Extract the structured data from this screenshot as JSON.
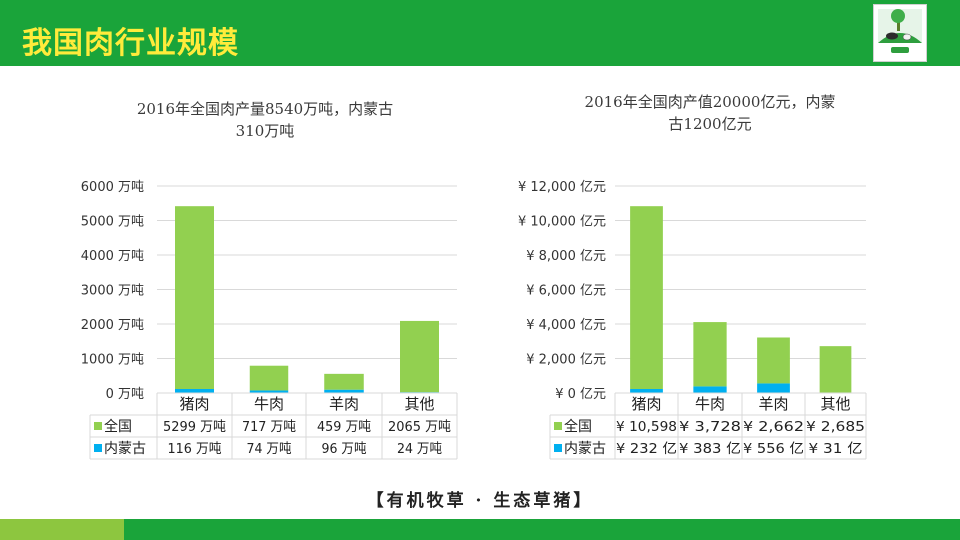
{
  "header": {
    "title": "我国肉行业规模"
  },
  "slogan": "【有机牧草 · 生态草猪】",
  "colors": {
    "brand_green": "#1aa43a",
    "national": "#92d050",
    "inner_mongolia": "#00b0f0",
    "title_yellow": "#ffeb3b"
  },
  "logo": {
    "icon": "cow-on-green-hill-logo"
  },
  "chart_data": [
    {
      "type": "bar",
      "stacked": true,
      "title": "2016年全国肉产量8540万吨，内蒙古310万吨",
      "title_lines": [
        "2016年全国肉产量8540万吨，内蒙古",
        "310万吨"
      ],
      "categories": [
        "猪肉",
        "牛肉",
        "羊肉",
        "其他"
      ],
      "series": [
        {
          "name": "全国",
          "values": [
            5299,
            717,
            459,
            2065
          ],
          "labels": [
            "5299 万吨",
            "717 万吨",
            "459 万吨",
            "2065 万吨"
          ]
        },
        {
          "name": "内蒙古",
          "values": [
            116,
            74,
            96,
            24
          ],
          "labels": [
            "116 万吨",
            "74 万吨",
            "96 万吨",
            "24 万吨"
          ]
        }
      ],
      "ylim": [
        0,
        6000
      ],
      "yticks": [
        0,
        1000,
        2000,
        3000,
        4000,
        5000,
        6000
      ],
      "ytick_labels": [
        "0 万吨",
        "1000 万吨",
        "2000 万吨",
        "3000 万吨",
        "4000 万吨",
        "5000 万吨",
        "6000 万吨"
      ],
      "grid": true,
      "legend": "data-table"
    },
    {
      "type": "bar",
      "stacked": true,
      "title": "2016年全国肉产值20000亿元，内蒙古1200亿元",
      "title_lines": [
        "2016年全国肉产值20000亿元，内蒙",
        "古1200亿元"
      ],
      "categories": [
        "猪肉",
        "牛肉",
        "羊肉",
        "其他"
      ],
      "series": [
        {
          "name": "全国",
          "values": [
            10598,
            3728,
            2662,
            2685
          ],
          "labels": [
            "¥ 10,598",
            "¥ 3,728",
            "¥ 2,662",
            "¥ 2,685"
          ]
        },
        {
          "name": "内蒙古",
          "values": [
            232,
            383,
            556,
            31
          ],
          "labels": [
            "¥ 232 亿",
            "¥ 383 亿",
            "¥ 556 亿",
            "¥ 31 亿"
          ]
        }
      ],
      "ylim": [
        0,
        12000
      ],
      "yticks": [
        0,
        2000,
        4000,
        6000,
        8000,
        10000,
        12000
      ],
      "ytick_labels": [
        "¥ 0 亿元",
        "¥ 2,000 亿元",
        "¥ 4,000 亿元",
        "¥ 6,000 亿元",
        "¥ 8,000 亿元",
        "¥ 10,000 亿元",
        "¥ 12,000 亿元"
      ],
      "grid": true,
      "legend": "data-table"
    }
  ]
}
